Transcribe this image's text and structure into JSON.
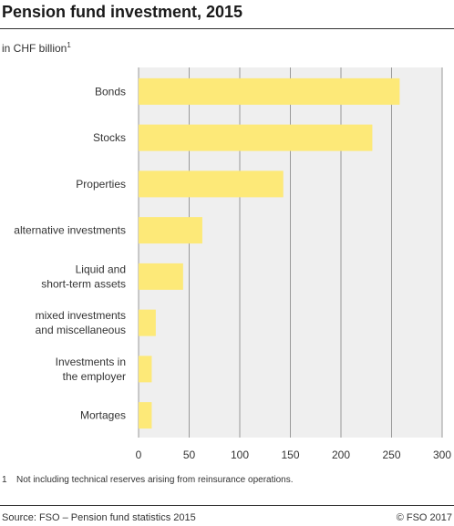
{
  "header": {
    "title": "Pension fund investment, 2015",
    "unit": "in CHF billion",
    "unit_note_mark": "1"
  },
  "footer": {
    "footnote_mark": "1",
    "footnote": "Not including technical reserves arising from reinsurance operations.",
    "source": "Source: FSO – Pension fund statistics 2015",
    "copyright": "© FSO 2017"
  },
  "colors": {
    "bar": "#fde978",
    "plot_bg": "#efefef",
    "grid": "#9a9a9a"
  },
  "chart_data": {
    "type": "bar",
    "orientation": "horizontal",
    "title": "Pension fund investment, 2015",
    "xlabel": "",
    "ylabel": "",
    "unit": "in CHF billion",
    "categories": [
      [
        "Bonds"
      ],
      [
        "Stocks"
      ],
      [
        "Properties"
      ],
      [
        "alternative investments"
      ],
      [
        "Liquid and",
        "short-term assets"
      ],
      [
        "mixed investments",
        "and miscellaneous"
      ],
      [
        "Investments in",
        "the employer"
      ],
      [
        "Mortages"
      ]
    ],
    "values": [
      258,
      231,
      143,
      63,
      44,
      17,
      13,
      13
    ],
    "xlim": [
      0,
      300
    ],
    "ticks": [
      0,
      50,
      100,
      150,
      200,
      250,
      300
    ],
    "grid": true
  }
}
